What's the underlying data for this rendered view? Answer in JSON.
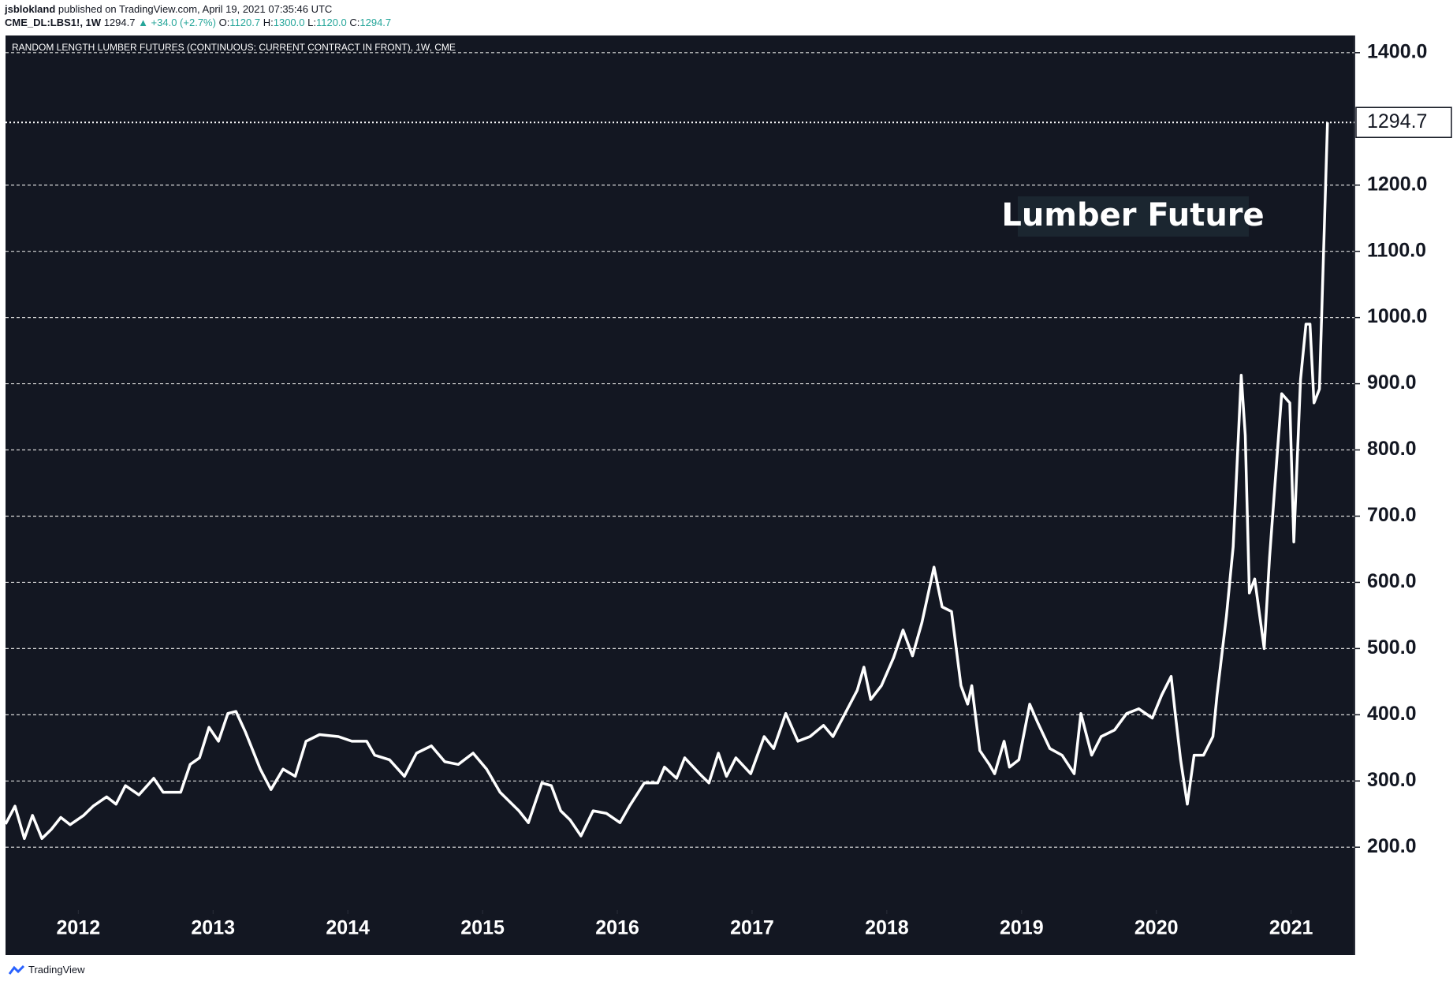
{
  "header": {
    "author": "jsblokland",
    "published": "published on TradingView.com, April 19, 2021 07:35:46 UTC",
    "symbol": "CME_DL:LBS1!, 1W",
    "last": "1294.7",
    "change": "▲ +34.0 (+2.7%)",
    "ohlc": [
      {
        "label": "O:",
        "value": "1120.7"
      },
      {
        "label": "H:",
        "value": "1300.0"
      },
      {
        "label": "L:",
        "value": "1120.0"
      },
      {
        "label": "C:",
        "value": "1294.7"
      }
    ]
  },
  "chart_data": {
    "type": "line",
    "title": "RANDOM LENGTH LUMBER FUTURES (CONTINUOUS: CURRENT CONTRACT IN FRONT), 1W, CME",
    "annotation": "Lumber Future",
    "color": "#ffffff",
    "grid": true,
    "x": [
      2011.46,
      2011.53,
      2011.6,
      2011.66,
      2011.73,
      2011.8,
      2011.87,
      2011.94,
      2012.04,
      2012.11,
      2012.21,
      2012.28,
      2012.35,
      2012.45,
      2012.56,
      2012.63,
      2012.76,
      2012.83,
      2012.9,
      2012.97,
      2013.04,
      2013.11,
      2013.17,
      2013.24,
      2013.35,
      2013.43,
      2013.52,
      2013.61,
      2013.69,
      2013.79,
      2013.93,
      2014.03,
      2014.14,
      2014.2,
      2014.31,
      2014.42,
      2014.51,
      2014.62,
      2014.72,
      2014.82,
      2014.93,
      2015.03,
      2015.13,
      2015.27,
      2015.34,
      2015.44,
      2015.51,
      2015.58,
      2015.65,
      2015.73,
      2015.82,
      2015.92,
      2016.02,
      2016.09,
      2016.2,
      2016.3,
      2016.35,
      2016.44,
      2016.5,
      2016.61,
      2016.68,
      2016.75,
      2016.81,
      2016.88,
      2016.99,
      2017.09,
      2017.16,
      2017.25,
      2017.34,
      2017.43,
      2017.53,
      2017.6,
      2017.69,
      2017.78,
      2017.83,
      2017.88,
      2017.96,
      2018.05,
      2018.12,
      2018.19,
      2018.26,
      2018.35,
      2018.41,
      2018.48,
      2018.55,
      2018.6,
      2018.63,
      2018.69,
      2018.76,
      2018.8,
      2018.87,
      2018.91,
      2018.98,
      2019.06,
      2019.12,
      2019.21,
      2019.3,
      2019.39,
      2019.44,
      2019.52,
      2019.59,
      2019.69,
      2019.78,
      2019.87,
      2019.97,
      2020.04,
      2020.11,
      2020.14,
      2020.18,
      2020.23,
      2020.28,
      2020.35,
      2020.42,
      2020.45,
      2020.52,
      2020.57,
      2020.63,
      2020.66,
      2020.69,
      2020.73,
      2020.8,
      2020.84,
      2020.93,
      2020.99,
      2021.02,
      2021.07,
      2021.11,
      2021.14,
      2021.17,
      2021.21,
      2021.27
    ],
    "values": [
      235,
      262,
      213,
      248,
      213,
      227,
      245,
      234,
      248,
      262,
      276,
      265,
      293,
      279,
      304,
      283,
      283,
      325,
      335,
      381,
      360,
      402,
      405,
      374,
      318,
      287,
      318,
      307,
      360,
      370,
      367,
      360,
      360,
      339,
      332,
      307,
      342,
      353,
      329,
      325,
      342,
      318,
      283,
      255,
      237,
      297,
      293,
      255,
      241,
      217,
      255,
      251,
      237,
      262,
      297,
      297,
      321,
      304,
      335,
      311,
      297,
      342,
      307,
      335,
      311,
      367,
      349,
      402,
      360,
      367,
      384,
      367,
      402,
      437,
      472,
      423,
      444,
      486,
      528,
      489,
      539,
      623,
      563,
      556,
      444,
      416,
      444,
      346,
      325,
      311,
      360,
      321,
      332,
      416,
      388,
      349,
      339,
      311,
      402,
      339,
      367,
      377,
      402,
      409,
      395,
      430,
      458,
      402,
      332,
      265,
      339,
      339,
      367,
      430,
      549,
      654,
      913,
      822,
      584,
      605,
      500,
      637,
      885,
      871,
      661,
      906,
      990,
      990,
      871,
      892,
      1294.7
    ],
    "xlim": [
      2011.46,
      2021.47
    ],
    "xticks": [
      2012,
      2013,
      2014,
      2015,
      2016,
      2017,
      2018,
      2019,
      2020,
      2021
    ],
    "ylim": [
      105,
      1426
    ],
    "yticks": [
      {
        "value": 200,
        "label": "200.0"
      },
      {
        "value": 300,
        "label": "300.0"
      },
      {
        "value": 400,
        "label": "400.0"
      },
      {
        "value": 500,
        "label": "500.0"
      },
      {
        "value": 600,
        "label": "600.0"
      },
      {
        "value": 700,
        "label": "700.0"
      },
      {
        "value": 800,
        "label": "800.0"
      },
      {
        "value": 900,
        "label": "900.0"
      },
      {
        "value": 1000,
        "label": "1000.0"
      },
      {
        "value": 1100,
        "label": "1100.0"
      },
      {
        "value": 1200,
        "label": "1200.0"
      },
      {
        "value": 1400,
        "label": "1400.0"
      }
    ]
  },
  "footer": {
    "brand": "TradingView"
  }
}
